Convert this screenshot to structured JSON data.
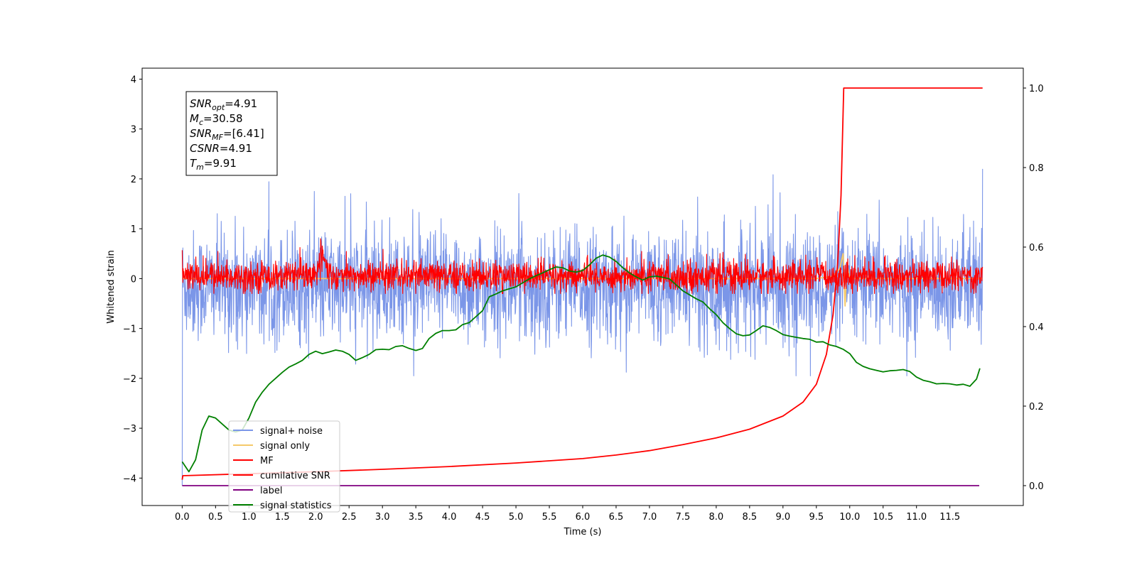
{
  "chart_data": {
    "type": "line",
    "xlabel": "Time (s)",
    "ylabel": "Whitened strain",
    "xlim": [
      -0.6,
      12.6
    ],
    "ylim": [
      -4.55,
      4.22
    ],
    "y2lim": [
      -0.05,
      1.05
    ],
    "xticks": [
      0.0,
      0.5,
      1.0,
      1.5,
      2.0,
      2.5,
      3.0,
      3.5,
      4.0,
      4.5,
      5.0,
      5.5,
      6.0,
      6.5,
      7.0,
      7.5,
      8.0,
      8.5,
      9.0,
      9.5,
      10.0,
      10.5,
      11.0,
      11.5
    ],
    "xtick_labels": [
      "0.0",
      "0.5",
      "1.0",
      "1.5",
      "2.0",
      "2.5",
      "3.0",
      "3.5",
      "4.0",
      "4.5",
      "5.0",
      "5.5",
      "6.0",
      "6.5",
      "7.0",
      "7.5",
      "8.0",
      "8.5",
      "9.0",
      "9.5",
      "10.0",
      "10.5",
      "11.0",
      "11.5"
    ],
    "yticks": [
      -4,
      -3,
      -2,
      -1,
      0,
      1,
      2,
      3,
      4
    ],
    "ytick_labels": [
      "−4",
      "−3",
      "−2",
      "−1",
      "0",
      "1",
      "2",
      "3",
      "4"
    ],
    "y2ticks": [
      0.0,
      0.2,
      0.4,
      0.6,
      0.8,
      1.0
    ],
    "y2tick_labels": [
      "0.0",
      "0.2",
      "0.4",
      "0.6",
      "0.8",
      "1.0"
    ],
    "grid": false,
    "legend_placement": "lower-left",
    "annotation": [
      {
        "sym": "SNR",
        "sub": "opt",
        "val": "=4.91"
      },
      {
        "sym": "M",
        "sub": "c",
        "val": "=30.58"
      },
      {
        "sym": "SNR",
        "sub": "MF",
        "val": "=[6.41]"
      },
      {
        "sym": "CSNR",
        "sub": "",
        "val": "=4.91"
      },
      {
        "sym": "T",
        "sub": "m",
        "val": "=9.91"
      }
    ],
    "series": [
      {
        "name": "signal+ noise",
        "axis": "left",
        "color": "#7b96e8",
        "style": "noise",
        "t_range": [
          0.0,
          11.99
        ],
        "center": -0.15,
        "amplitude": 0.55,
        "min": -1.95,
        "max": 2.3,
        "start_value": -4.15,
        "end_value": 2.2
      },
      {
        "name": "signal only",
        "axis": "left",
        "color": "#f5c96a",
        "style": "signal",
        "t": [
          0.0,
          9.5,
          9.75,
          9.85,
          9.9,
          9.93,
          9.96,
          10.0,
          11.99
        ],
        "values": [
          0.0,
          0.0,
          0.05,
          0.2,
          0.5,
          -0.55,
          0.3,
          0.0,
          0.0
        ]
      },
      {
        "name": "MF",
        "axis": "left",
        "color": "#ff0000",
        "style": "noise",
        "t_range": [
          0.0,
          11.99
        ],
        "center": 0.05,
        "amplitude": 0.15,
        "min": -0.3,
        "max": 1.0,
        "start_value": 0.57,
        "peak_t": 2.1,
        "peak_value": 1.0
      },
      {
        "name": "cumilative SNR",
        "axis": "right",
        "color": "#ff0000",
        "style": "line",
        "t": [
          0.0,
          0.01,
          1.0,
          2.0,
          3.0,
          4.0,
          5.0,
          6.0,
          6.5,
          7.0,
          7.5,
          8.0,
          8.5,
          9.0,
          9.3,
          9.5,
          9.65,
          9.75,
          9.82,
          9.87,
          9.91,
          11.99
        ],
        "values": [
          0.015,
          0.025,
          0.03,
          0.035,
          0.041,
          0.048,
          0.057,
          0.068,
          0.077,
          0.088,
          0.103,
          0.12,
          0.142,
          0.175,
          0.21,
          0.255,
          0.33,
          0.43,
          0.56,
          0.73,
          1.0,
          1.0
        ]
      },
      {
        "name": "label",
        "axis": "right",
        "color": "#800080",
        "style": "line",
        "t": [
          0.0,
          11.94
        ],
        "values": [
          0.0,
          0.0
        ]
      },
      {
        "name": "signal statistics",
        "axis": "right",
        "color": "#008000",
        "style": "line",
        "t": [
          0.0,
          0.1,
          0.2,
          0.3,
          0.4,
          0.5,
          0.6,
          0.7,
          0.8,
          0.9,
          1.0,
          1.1,
          1.2,
          1.3,
          1.4,
          1.5,
          1.6,
          1.7,
          1.8,
          1.9,
          2.0,
          2.1,
          2.2,
          2.3,
          2.4,
          2.5,
          2.6,
          2.7,
          2.8,
          2.9,
          3.0,
          3.1,
          3.2,
          3.3,
          3.4,
          3.5,
          3.6,
          3.7,
          3.8,
          3.9,
          4.0,
          4.1,
          4.2,
          4.3,
          4.4,
          4.5,
          4.6,
          4.7,
          4.8,
          4.9,
          5.0,
          5.1,
          5.2,
          5.3,
          5.4,
          5.5,
          5.6,
          5.7,
          5.8,
          5.9,
          6.0,
          6.1,
          6.2,
          6.3,
          6.4,
          6.5,
          6.6,
          6.7,
          6.8,
          6.9,
          7.0,
          7.1,
          7.2,
          7.3,
          7.4,
          7.5,
          7.6,
          7.7,
          7.8,
          7.9,
          8.0,
          8.1,
          8.2,
          8.3,
          8.4,
          8.5,
          8.6,
          8.7,
          8.8,
          8.9,
          9.0,
          9.1,
          9.2,
          9.3,
          9.4,
          9.5,
          9.6,
          9.7,
          9.8,
          9.9,
          10.0,
          10.1,
          10.2,
          10.3,
          10.4,
          10.5,
          10.6,
          10.7,
          10.8,
          10.9,
          11.0,
          11.1,
          11.2,
          11.3,
          11.4,
          11.5,
          11.6,
          11.7,
          11.8,
          11.9,
          11.95
        ],
        "values": [
          0.06,
          0.035,
          0.065,
          0.14,
          0.175,
          0.17,
          0.155,
          0.14,
          0.135,
          0.14,
          0.17,
          0.21,
          0.235,
          0.255,
          0.27,
          0.285,
          0.298,
          0.306,
          0.315,
          0.33,
          0.338,
          0.332,
          0.336,
          0.341,
          0.338,
          0.33,
          0.315,
          0.322,
          0.33,
          0.342,
          0.343,
          0.342,
          0.35,
          0.352,
          0.345,
          0.34,
          0.345,
          0.37,
          0.383,
          0.39,
          0.39,
          0.392,
          0.405,
          0.41,
          0.425,
          0.44,
          0.475,
          0.482,
          0.49,
          0.495,
          0.5,
          0.51,
          0.52,
          0.528,
          0.535,
          0.543,
          0.55,
          0.548,
          0.54,
          0.537,
          0.541,
          0.555,
          0.572,
          0.58,
          0.575,
          0.564,
          0.548,
          0.535,
          0.525,
          0.517,
          0.525,
          0.527,
          0.524,
          0.52,
          0.505,
          0.49,
          0.48,
          0.47,
          0.462,
          0.445,
          0.43,
          0.41,
          0.395,
          0.382,
          0.377,
          0.379,
          0.39,
          0.402,
          0.398,
          0.39,
          0.38,
          0.376,
          0.373,
          0.37,
          0.368,
          0.361,
          0.362,
          0.354,
          0.35,
          0.343,
          0.332,
          0.31,
          0.3,
          0.294,
          0.29,
          0.286,
          0.289,
          0.29,
          0.292,
          0.287,
          0.273,
          0.265,
          0.261,
          0.256,
          0.257,
          0.256,
          0.253,
          0.255,
          0.25,
          0.268,
          0.295
        ]
      }
    ]
  }
}
